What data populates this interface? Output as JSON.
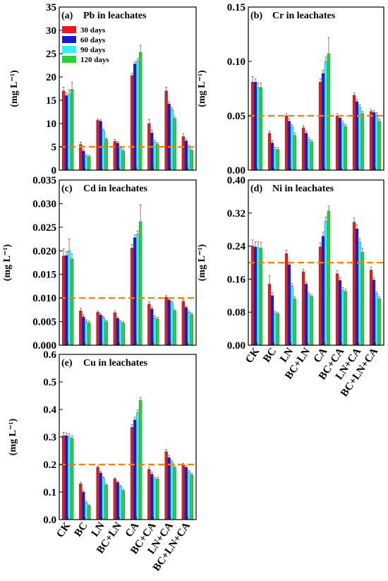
{
  "legend": [
    "30 days",
    "60 days",
    "90 days",
    "120 days"
  ],
  "colors": [
    "#e41a1c",
    "#1a1ad6",
    "#33f0ff",
    "#2ccf3c"
  ],
  "threshold_color": "#ff7f0e",
  "categories": [
    "CK",
    "BC",
    "LN",
    "BC+LN",
    "CA",
    "BC+CA",
    "LN+CA",
    "BC+LN+CA"
  ],
  "chart_data": [
    {
      "type": "bar",
      "panel": "(a)",
      "title": "Pb in leachates",
      "ylabel": "(mg L⁻¹)",
      "ylim": [
        0,
        35
      ],
      "yticks": [
        "0",
        "5",
        "10",
        "15",
        "20",
        "25",
        "30",
        "35"
      ],
      "threshold": 5,
      "legend": true,
      "series": [
        {
          "name": "30 days",
          "values": [
            17.0,
            5.5,
            10.7,
            6.2,
            20.3,
            10.0,
            17.0,
            7.2
          ],
          "errors": [
            0.8,
            0.5,
            0.3,
            0.4,
            0.5,
            0.9,
            0.8,
            0.6
          ]
        },
        {
          "name": "60 days",
          "values": [
            16.0,
            4.1,
            10.5,
            5.8,
            22.8,
            8.0,
            14.2,
            6.3
          ],
          "errors": [
            0.6,
            0.3,
            0.3,
            0.3,
            0.5,
            0.5,
            0.5,
            0.4
          ]
        },
        {
          "name": "90 days",
          "values": [
            16.3,
            3.0,
            8.5,
            4.8,
            23.4,
            6.0,
            13.0,
            5.1
          ],
          "errors": [
            0.9,
            0.3,
            0.3,
            0.3,
            0.5,
            0.4,
            0.4,
            0.3
          ]
        },
        {
          "name": "120 days",
          "values": [
            17.3,
            2.9,
            6.6,
            4.1,
            25.3,
            5.5,
            11.1,
            4.2
          ],
          "errors": [
            1.6,
            0.3,
            0.3,
            0.3,
            1.5,
            0.3,
            0.4,
            0.3
          ]
        }
      ]
    },
    {
      "type": "bar",
      "panel": "(b)",
      "title": "Cr in leachates",
      "ylabel": "(mg L⁻¹)",
      "ylim": [
        0,
        0.15
      ],
      "yticks": [
        "0.00",
        "0.05",
        "0.10",
        "0.15"
      ],
      "threshold": 0.05,
      "legend": false,
      "series": [
        {
          "name": "30 days",
          "values": [
            0.081,
            0.034,
            0.05,
            0.039,
            0.081,
            0.05,
            0.069,
            0.054
          ],
          "errors": [
            0.005,
            0.002,
            0.002,
            0.002,
            0.003,
            0.002,
            0.002,
            0.002
          ]
        },
        {
          "name": "60 days",
          "values": [
            0.081,
            0.025,
            0.045,
            0.034,
            0.089,
            0.048,
            0.063,
            0.053
          ],
          "errors": [
            0.003,
            0.002,
            0.002,
            0.002,
            0.003,
            0.002,
            0.002,
            0.002
          ]
        },
        {
          "name": "90 days",
          "values": [
            0.076,
            0.019,
            0.04,
            0.028,
            0.1,
            0.043,
            0.058,
            0.051
          ],
          "errors": [
            0.004,
            0.002,
            0.002,
            0.002,
            0.004,
            0.002,
            0.002,
            0.002
          ]
        },
        {
          "name": "120 days",
          "values": [
            0.076,
            0.019,
            0.032,
            0.026,
            0.107,
            0.04,
            0.052,
            0.045
          ],
          "errors": [
            0.004,
            0.002,
            0.002,
            0.002,
            0.015,
            0.002,
            0.002,
            0.002
          ]
        }
      ]
    },
    {
      "type": "bar",
      "panel": "(c)",
      "title": "Cd in leachates",
      "ylabel": "(mg L⁻¹)",
      "ylim": [
        0,
        0.035
      ],
      "yticks": [
        "0.000",
        "0.005",
        "0.010",
        "0.015",
        "0.020",
        "0.025",
        "0.030",
        "0.035"
      ],
      "threshold": 0.01,
      "legend": false,
      "series": [
        {
          "name": "30 days",
          "values": [
            0.0189,
            0.0073,
            0.007,
            0.0069,
            0.0206,
            0.0087,
            0.0102,
            0.0093
          ],
          "errors": [
            0.0015,
            0.0005,
            0.0003,
            0.0004,
            0.0007,
            0.0005,
            0.0004,
            0.0004
          ]
        },
        {
          "name": "60 days",
          "values": [
            0.019,
            0.006,
            0.0064,
            0.0057,
            0.0228,
            0.0077,
            0.0096,
            0.008
          ],
          "errors": [
            0.0008,
            0.0004,
            0.0003,
            0.0003,
            0.0006,
            0.0004,
            0.0004,
            0.0003
          ]
        },
        {
          "name": "90 days",
          "values": [
            0.02,
            0.005,
            0.0058,
            0.0049,
            0.0235,
            0.0058,
            0.009,
            0.007
          ],
          "errors": [
            0.0025,
            0.0004,
            0.0003,
            0.0003,
            0.0007,
            0.0004,
            0.0003,
            0.0003
          ]
        },
        {
          "name": "120 days",
          "values": [
            0.0183,
            0.0047,
            0.005,
            0.0047,
            0.0262,
            0.0055,
            0.0073,
            0.0065
          ],
          "errors": [
            0.001,
            0.0004,
            0.0003,
            0.0003,
            0.0035,
            0.0004,
            0.0003,
            0.0003
          ]
        }
      ]
    },
    {
      "type": "bar",
      "panel": "(d)",
      "title": "Ni in leachates",
      "ylabel": "(mg L⁻¹)",
      "ylim": [
        0,
        0.4
      ],
      "yticks": [
        "0.00",
        "0.08",
        "0.16",
        "0.24",
        "0.32",
        "0.40"
      ],
      "threshold": 0.2,
      "legend": false,
      "series": [
        {
          "name": "30 days",
          "values": [
            0.24,
            0.148,
            0.222,
            0.178,
            0.238,
            0.173,
            0.298,
            0.182
          ],
          "errors": [
            0.015,
            0.02,
            0.008,
            0.006,
            0.01,
            0.008,
            0.01,
            0.007
          ]
        },
        {
          "name": "60 days",
          "values": [
            0.238,
            0.12,
            0.195,
            0.148,
            0.264,
            0.157,
            0.282,
            0.158
          ],
          "errors": [
            0.012,
            0.007,
            0.006,
            0.005,
            0.01,
            0.006,
            0.009,
            0.005
          ]
        },
        {
          "name": "90 days",
          "values": [
            0.236,
            0.078,
            0.143,
            0.122,
            0.3,
            0.133,
            0.25,
            0.124
          ],
          "errors": [
            0.015,
            0.004,
            0.006,
            0.005,
            0.01,
            0.006,
            0.008,
            0.005
          ]
        },
        {
          "name": "120 days",
          "values": [
            0.235,
            0.076,
            0.112,
            0.118,
            0.325,
            0.13,
            0.225,
            0.112
          ],
          "errors": [
            0.014,
            0.004,
            0.005,
            0.005,
            0.012,
            0.006,
            0.01,
            0.005
          ]
        }
      ]
    },
    {
      "type": "bar",
      "panel": "(e)",
      "title": "Cu in leachates",
      "ylabel": "(mg L⁻¹)",
      "ylim": [
        0,
        0.6
      ],
      "yticks": [
        "0.0",
        "0.1",
        "0.2",
        "0.3",
        "0.4",
        "0.5",
        "0.6"
      ],
      "threshold": 0.2,
      "legend": false,
      "series": [
        {
          "name": "30 days",
          "values": [
            0.305,
            0.13,
            0.19,
            0.148,
            0.335,
            0.183,
            0.247,
            0.198
          ],
          "errors": [
            0.012,
            0.006,
            0.005,
            0.005,
            0.01,
            0.008,
            0.008,
            0.006
          ]
        },
        {
          "name": "60 days",
          "values": [
            0.305,
            0.1,
            0.17,
            0.135,
            0.362,
            0.165,
            0.225,
            0.19
          ],
          "errors": [
            0.01,
            0.005,
            0.005,
            0.005,
            0.01,
            0.007,
            0.008,
            0.006
          ]
        },
        {
          "name": "90 days",
          "values": [
            0.3,
            0.06,
            0.15,
            0.12,
            0.388,
            0.148,
            0.208,
            0.173
          ],
          "errors": [
            0.012,
            0.005,
            0.005,
            0.005,
            0.01,
            0.006,
            0.007,
            0.006
          ]
        },
        {
          "name": "120 days",
          "values": [
            0.295,
            0.05,
            0.125,
            0.105,
            0.433,
            0.147,
            0.19,
            0.162
          ],
          "errors": [
            0.01,
            0.004,
            0.005,
            0.005,
            0.01,
            0.006,
            0.007,
            0.006
          ]
        }
      ]
    }
  ]
}
